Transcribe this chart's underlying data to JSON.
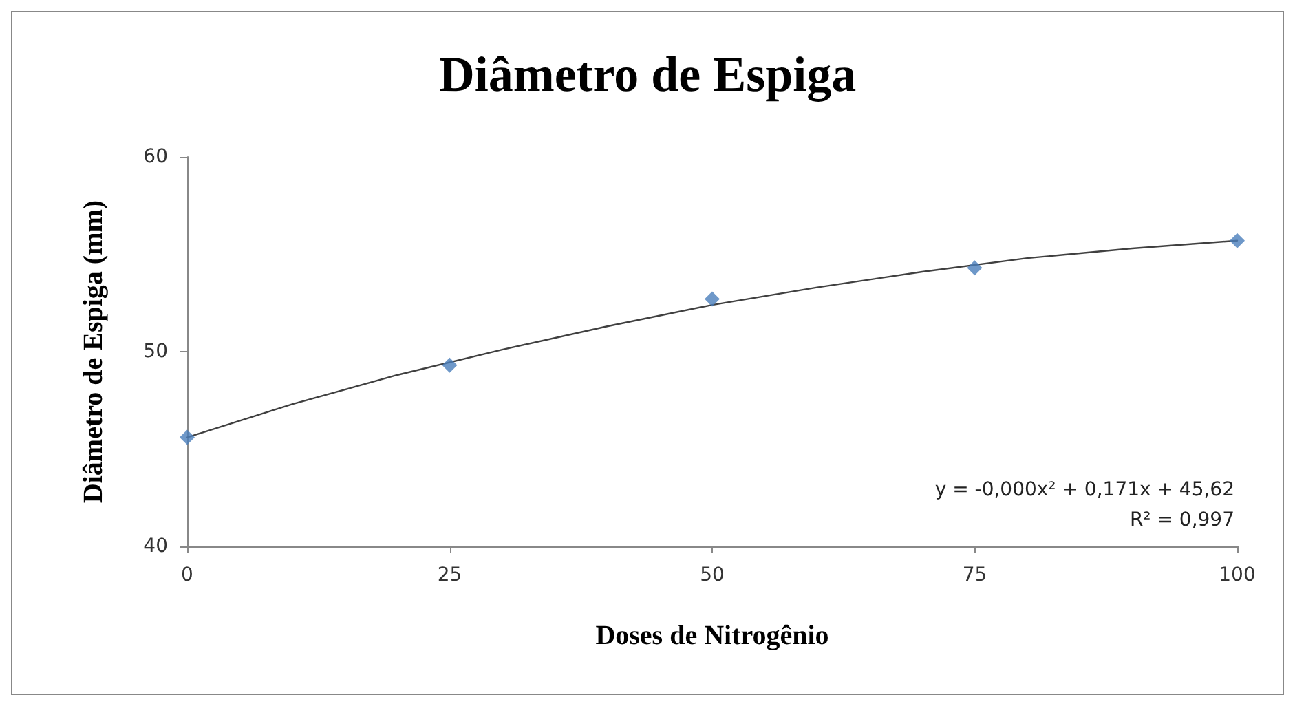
{
  "chart_data": {
    "type": "scatter",
    "title": "Diâmetro de Espiga",
    "xlabel": "Doses de Nitrogênio",
    "ylabel": "Diâmetro de Espiga (mm)",
    "xlim": [
      0,
      100
    ],
    "xticks": [
      0,
      25,
      50,
      75,
      100
    ],
    "ylim": [
      40,
      60
    ],
    "yticks": [
      40,
      50,
      60
    ],
    "grid": false,
    "series": [
      {
        "color": "#4a7ebb",
        "marker": "diamond",
        "x": [
          0,
          25,
          50,
          75,
          100
        ],
        "values": [
          45.6,
          49.3,
          52.7,
          54.3,
          55.7
        ]
      },
      {
        "type": "line",
        "color": "#404040",
        "marker": "none",
        "line_style": "solid",
        "x": [
          0,
          10,
          20,
          30,
          40,
          50,
          60,
          70,
          80,
          90,
          100
        ],
        "values": [
          45.6,
          47.3,
          48.8,
          50.1,
          51.3,
          52.4,
          53.3,
          54.1,
          54.8,
          55.3,
          55.7
        ]
      }
    ],
    "annotations": [
      "y = -0,000x² + 0,171x + 45,62",
      "R² = 0,997"
    ]
  }
}
